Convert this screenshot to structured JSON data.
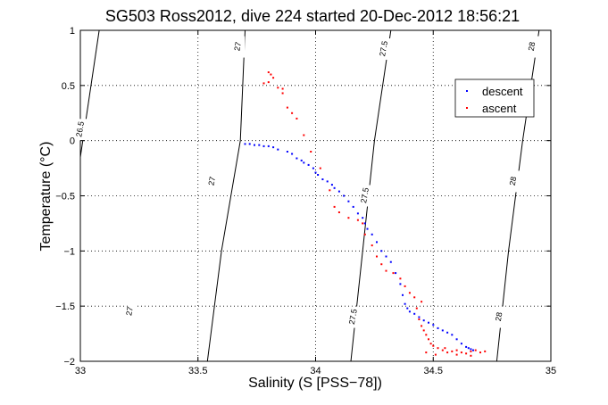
{
  "chart_data": {
    "type": "scatter",
    "title": "SG503 Ross2012, dive 224 started 20-Dec-2012 18:56:21",
    "xlabel": "Salinity (S [PSS−78])",
    "ylabel": "Temperature (°C)",
    "xlim": [
      33,
      35
    ],
    "ylim": [
      -2,
      1
    ],
    "xticks": [
      "33",
      "33.5",
      "34",
      "34.5",
      "35"
    ],
    "yticks": [
      "−2",
      "−1.5",
      "−1",
      "−0.5",
      "0",
      "0.5",
      "1"
    ],
    "grid": true,
    "legend_position": "top-right",
    "series": [
      {
        "name": "descent",
        "color": "#0000ff",
        "points": [
          [
            33.7,
            -0.03
          ],
          [
            33.72,
            -0.03
          ],
          [
            33.74,
            -0.04
          ],
          [
            33.76,
            -0.04
          ],
          [
            33.78,
            -0.05
          ],
          [
            33.8,
            -0.05
          ],
          [
            33.82,
            -0.06
          ],
          [
            33.84,
            -0.08
          ],
          [
            33.88,
            -0.1
          ],
          [
            33.9,
            -0.12
          ],
          [
            33.92,
            -0.16
          ],
          [
            33.94,
            -0.18
          ],
          [
            33.95,
            -0.2
          ],
          [
            33.97,
            -0.22
          ],
          [
            33.99,
            -0.25
          ],
          [
            34.0,
            -0.29
          ],
          [
            34.01,
            -0.31
          ],
          [
            34.03,
            -0.35
          ],
          [
            34.05,
            -0.37
          ],
          [
            34.07,
            -0.4
          ],
          [
            34.08,
            -0.43
          ],
          [
            34.1,
            -0.46
          ],
          [
            34.12,
            -0.5
          ],
          [
            34.14,
            -0.55
          ],
          [
            34.16,
            -0.6
          ],
          [
            34.18,
            -0.66
          ],
          [
            34.2,
            -0.7
          ],
          [
            34.21,
            -0.75
          ],
          [
            34.22,
            -0.8
          ],
          [
            34.24,
            -0.85
          ],
          [
            34.26,
            -0.92
          ],
          [
            34.28,
            -1.0
          ],
          [
            34.3,
            -1.05
          ],
          [
            34.32,
            -1.1
          ],
          [
            34.34,
            -1.2
          ],
          [
            34.36,
            -1.3
          ],
          [
            34.37,
            -1.4
          ],
          [
            34.38,
            -1.48
          ],
          [
            34.39,
            -1.52
          ],
          [
            34.4,
            -1.55
          ],
          [
            34.42,
            -1.57
          ],
          [
            34.44,
            -1.6
          ],
          [
            34.46,
            -1.63
          ],
          [
            34.48,
            -1.65
          ],
          [
            34.5,
            -1.67
          ],
          [
            34.52,
            -1.7
          ],
          [
            34.54,
            -1.72
          ],
          [
            34.56,
            -1.74
          ],
          [
            34.58,
            -1.76
          ],
          [
            34.6,
            -1.8
          ],
          [
            34.62,
            -1.84
          ],
          [
            34.64,
            -1.87
          ],
          [
            34.65,
            -1.88
          ],
          [
            34.66,
            -1.89
          ],
          [
            34.67,
            -1.9
          ]
        ]
      },
      {
        "name": "ascent",
        "color": "#ff0000",
        "points": [
          [
            33.8,
            0.62
          ],
          [
            33.81,
            0.6
          ],
          [
            33.82,
            0.57
          ],
          [
            33.8,
            0.53
          ],
          [
            33.78,
            0.52
          ],
          [
            33.84,
            0.48
          ],
          [
            33.86,
            0.47
          ],
          [
            33.86,
            0.43
          ],
          [
            33.88,
            0.3
          ],
          [
            33.9,
            0.25
          ],
          [
            33.92,
            0.2
          ],
          [
            33.95,
            0.05
          ],
          [
            33.98,
            -0.1
          ],
          [
            34.02,
            -0.25
          ],
          [
            34.06,
            -0.45
          ],
          [
            34.08,
            -0.6
          ],
          [
            34.1,
            -0.65
          ],
          [
            34.14,
            -0.7
          ],
          [
            34.18,
            -0.72
          ],
          [
            34.2,
            -0.75
          ],
          [
            34.21,
            -0.85
          ],
          [
            34.24,
            -0.95
          ],
          [
            34.26,
            -1.05
          ],
          [
            34.28,
            -1.12
          ],
          [
            34.3,
            -1.18
          ],
          [
            34.33,
            -1.2
          ],
          [
            34.36,
            -1.25
          ],
          [
            34.38,
            -1.32
          ],
          [
            34.4,
            -1.38
          ],
          [
            34.42,
            -1.42
          ],
          [
            34.43,
            -1.52
          ],
          [
            34.44,
            -1.62
          ],
          [
            34.45,
            -1.68
          ],
          [
            34.46,
            -1.72
          ],
          [
            34.47,
            -1.76
          ],
          [
            34.48,
            -1.8
          ],
          [
            34.49,
            -1.84
          ],
          [
            34.5,
            -1.86
          ],
          [
            34.52,
            -1.88
          ],
          [
            34.54,
            -1.9
          ],
          [
            34.56,
            -1.92
          ],
          [
            34.58,
            -1.91
          ],
          [
            34.6,
            -1.9
          ],
          [
            34.62,
            -1.92
          ],
          [
            34.64,
            -1.93
          ],
          [
            34.66,
            -1.91
          ],
          [
            34.68,
            -1.9
          ],
          [
            34.7,
            -1.92
          ],
          [
            34.72,
            -1.91
          ],
          [
            34.47,
            -1.92
          ],
          [
            34.51,
            -1.94
          ],
          [
            34.55,
            -1.88
          ],
          [
            34.6,
            -1.94
          ],
          [
            34.66,
            -1.95
          ],
          [
            34.45,
            -1.46
          ]
        ]
      }
    ],
    "contours": [
      {
        "label": "26.5",
        "points": [
          [
            33.0,
            -0.15
          ],
          [
            33.08,
            1.0
          ]
        ]
      },
      {
        "label": "27",
        "points": [
          [
            33.54,
            -2.0
          ],
          [
            33.6,
            -1.0
          ],
          [
            33.68,
            0.0
          ],
          [
            33.7,
            1.0
          ]
        ]
      },
      {
        "label": "27.5",
        "points": [
          [
            34.15,
            -2.0
          ],
          [
            34.2,
            -1.0
          ],
          [
            34.25,
            0.0
          ],
          [
            34.32,
            1.0
          ]
        ]
      },
      {
        "label": "28",
        "points": [
          [
            34.77,
            -2.0
          ],
          [
            34.82,
            -1.0
          ],
          [
            34.88,
            0.0
          ],
          [
            34.95,
            1.0
          ]
        ]
      }
    ],
    "contour_label_positions": [
      {
        "label": "26.5",
        "x": 33.01,
        "y": 0.1
      },
      {
        "label": "27",
        "x": 33.22,
        "y": -1.55
      },
      {
        "label": "27",
        "x": 33.57,
        "y": -0.37
      },
      {
        "label": "27",
        "x": 33.68,
        "y": 0.85
      },
      {
        "label": "27.5",
        "x": 34.17,
        "y": -1.6
      },
      {
        "label": "27.5",
        "x": 34.22,
        "y": -0.5
      },
      {
        "label": "27.5",
        "x": 34.3,
        "y": 0.83
      },
      {
        "label": "28",
        "x": 34.79,
        "y": -1.6
      },
      {
        "label": "28",
        "x": 34.85,
        "y": -0.37
      },
      {
        "label": "28",
        "x": 34.93,
        "y": 0.85
      }
    ]
  }
}
